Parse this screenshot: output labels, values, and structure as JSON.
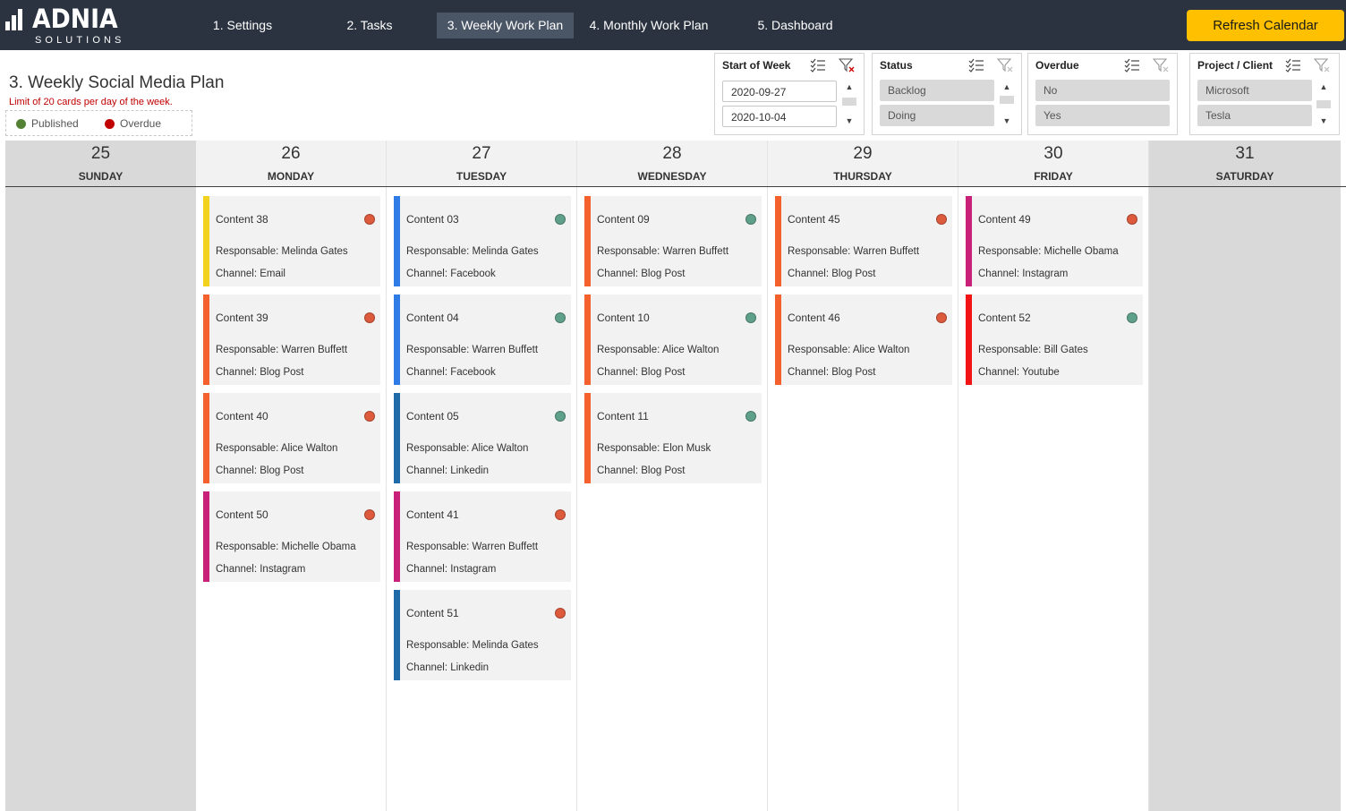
{
  "brand": {
    "name": "ADNIA",
    "sub": "SOLUTIONS"
  },
  "nav": [
    {
      "label": "1. Settings",
      "active": false
    },
    {
      "label": "2. Tasks",
      "active": false
    },
    {
      "label": "3. Weekly Work Plan",
      "active": true
    },
    {
      "label": "4. Monthly Work Plan",
      "active": false
    },
    {
      "label": "5. Dashboard",
      "active": false
    }
  ],
  "refresh_label": "Refresh Calendar",
  "page": {
    "title": "3. Weekly Social Media Plan",
    "limit_note": "Limit of 20 cards per day of the week.",
    "legend": [
      {
        "label": "Published",
        "color": "#548235"
      },
      {
        "label": "Overdue",
        "color": "#c00000"
      }
    ]
  },
  "slicers": {
    "start_of_week": {
      "title": "Start of Week",
      "options": [
        "2020-09-27",
        "2020-10-04"
      ]
    },
    "status": {
      "title": "Status",
      "options": [
        "Backlog",
        "Doing"
      ]
    },
    "overdue": {
      "title": "Overdue",
      "options": [
        "No",
        "Yes"
      ]
    },
    "project": {
      "title": "Project / Client",
      "options": [
        "Microsoft",
        "Tesla"
      ]
    }
  },
  "colors": {
    "published_dot": "#5fa08a",
    "overdue_dot": "#dd5a3c",
    "email": "#f2d21e",
    "blog": "#f4612d",
    "facebook": "#2f7ce6",
    "linkedin": "#1f6aa8",
    "instagram": "#c9207a",
    "youtube": "#f21414",
    "accent": "#ffc000"
  },
  "days": [
    {
      "num": "25",
      "name": "SUNDAY",
      "weekend": true,
      "cards": []
    },
    {
      "num": "26",
      "name": "MONDAY",
      "weekend": false,
      "cards": [
        {
          "title": "Content 38",
          "responsable": "Responsable: Melinda Gates",
          "channel": "Channel: Email",
          "bar": "email",
          "status": "overdue"
        },
        {
          "title": "Content 39",
          "responsable": "Responsable: Warren Buffett",
          "channel": "Channel: Blog Post",
          "bar": "blog",
          "status": "overdue"
        },
        {
          "title": "Content 40",
          "responsable": "Responsable: Alice Walton",
          "channel": "Channel: Blog Post",
          "bar": "blog",
          "status": "overdue"
        },
        {
          "title": "Content 50",
          "responsable": "Responsable: Michelle Obama",
          "channel": "Channel: Instagram",
          "bar": "instagram",
          "status": "overdue"
        }
      ]
    },
    {
      "num": "27",
      "name": "TUESDAY",
      "weekend": false,
      "cards": [
        {
          "title": "Content 03",
          "responsable": "Responsable: Melinda Gates",
          "channel": "Channel: Facebook",
          "bar": "facebook",
          "status": "published"
        },
        {
          "title": "Content 04",
          "responsable": "Responsable: Warren Buffett",
          "channel": "Channel: Facebook",
          "bar": "facebook",
          "status": "published"
        },
        {
          "title": "Content 05",
          "responsable": "Responsable: Alice Walton",
          "channel": "Channel: Linkedin",
          "bar": "linkedin",
          "status": "published"
        },
        {
          "title": "Content 41",
          "responsable": "Responsable: Warren Buffett",
          "channel": "Channel: Instagram",
          "bar": "instagram",
          "status": "overdue"
        },
        {
          "title": "Content 51",
          "responsable": "Responsable: Melinda Gates",
          "channel": "Channel: Linkedin",
          "bar": "linkedin",
          "status": "overdue"
        }
      ]
    },
    {
      "num": "28",
      "name": "WEDNESDAY",
      "weekend": false,
      "cards": [
        {
          "title": "Content 09",
          "responsable": "Responsable: Warren Buffett",
          "channel": "Channel: Blog Post",
          "bar": "blog",
          "status": "published"
        },
        {
          "title": "Content 10",
          "responsable": "Responsable: Alice Walton",
          "channel": "Channel: Blog Post",
          "bar": "blog",
          "status": "published"
        },
        {
          "title": "Content 11",
          "responsable": "Responsable: Elon Musk",
          "channel": "Channel: Blog Post",
          "bar": "blog",
          "status": "published"
        }
      ]
    },
    {
      "num": "29",
      "name": "THURSDAY",
      "weekend": false,
      "cards": [
        {
          "title": "Content 45",
          "responsable": "Responsable: Warren Buffett",
          "channel": "Channel: Blog Post",
          "bar": "blog",
          "status": "overdue"
        },
        {
          "title": "Content 46",
          "responsable": "Responsable: Alice Walton",
          "channel": "Channel: Blog Post",
          "bar": "blog",
          "status": "overdue"
        }
      ]
    },
    {
      "num": "30",
      "name": "FRIDAY",
      "weekend": false,
      "cards": [
        {
          "title": "Content 49",
          "responsable": "Responsable: Michelle Obama",
          "channel": "Channel: Instagram",
          "bar": "instagram",
          "status": "overdue"
        },
        {
          "title": "Content 52",
          "responsable": "Responsable: Bill Gates",
          "channel": "Channel: Youtube",
          "bar": "youtube",
          "status": "published"
        }
      ]
    },
    {
      "num": "31",
      "name": "SATURDAY",
      "weekend": true,
      "cards": []
    }
  ]
}
